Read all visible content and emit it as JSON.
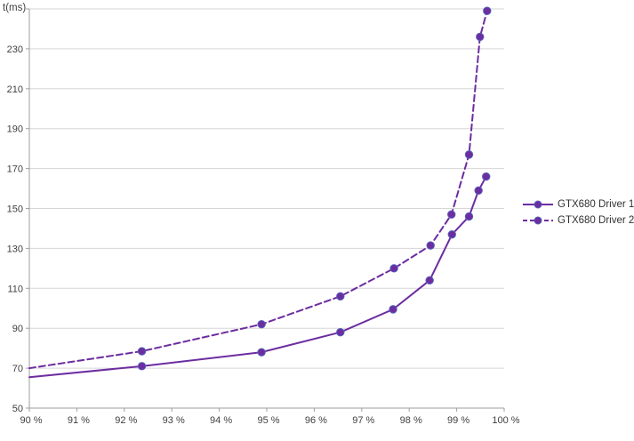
{
  "chart_data": {
    "type": "line",
    "title": "t(ms)",
    "xlabel": "",
    "ylabel": "t(ms)",
    "xlim": [
      90,
      100
    ],
    "ylim": [
      50,
      250
    ],
    "grid": "horizontal",
    "legend_position": "right",
    "x_ticks": [
      90,
      91,
      92,
      93,
      94,
      95,
      96,
      97,
      98,
      99,
      100
    ],
    "x_tick_labels": [
      "90 %",
      "91 %",
      "92 %",
      "93 %",
      "94 %",
      "95 %",
      "96 %",
      "97 %",
      "98 %",
      "99 %",
      "100 %"
    ],
    "y_ticks": [
      50,
      70,
      90,
      110,
      130,
      150,
      170,
      190,
      210,
      230,
      250
    ],
    "y_tick_labels": [
      "50",
      "70",
      "90",
      "110",
      "130",
      "150",
      "170",
      "190",
      "210",
      "230",
      ""
    ],
    "colors": {
      "accent": "#6C2DA0",
      "marker_edge": "#5560BB",
      "grid": "#D6D6D6",
      "axis": "#9E9E9E",
      "text": "#3F3F3F"
    },
    "series": [
      {
        "name": "GTX680 Driver 1",
        "style": "solid",
        "color": "#6C2DA0",
        "markers_from_index": 1,
        "x": [
          90,
          92.37,
          94.89,
          96.55,
          97.66,
          98.43,
          98.9,
          99.26,
          99.46,
          99.62
        ],
        "y": [
          65.5,
          71,
          78,
          88,
          99.5,
          114,
          137,
          146,
          159,
          166
        ]
      },
      {
        "name": "GTX680 Driver 2",
        "style": "dashed",
        "color": "#6C2DA0",
        "markers_from_index": 1,
        "x": [
          90,
          92.37,
          94.89,
          96.55,
          97.68,
          98.45,
          98.89,
          99.26,
          99.49,
          99.64
        ],
        "y": [
          70,
          78.5,
          92,
          106,
          120,
          131.5,
          147,
          177,
          236,
          249
        ]
      }
    ]
  }
}
